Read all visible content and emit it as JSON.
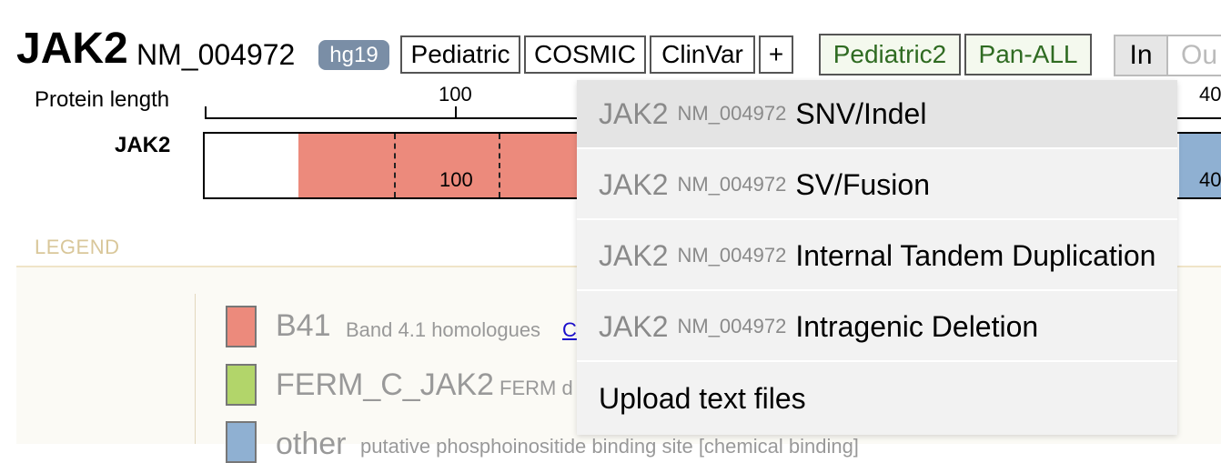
{
  "header": {
    "gene": "JAK2",
    "isoform": "NM_004972",
    "genome_badge": "hg19",
    "dataset_buttons": [
      "Pediatric",
      "COSMIC",
      "ClinVar",
      "+"
    ],
    "group_buttons": [
      "Pediatric2",
      "Pan-ALL"
    ],
    "toggle_in": "In",
    "toggle_out": "Ou"
  },
  "ruler": {
    "label": "Protein length",
    "ticks": [
      "100",
      "40"
    ]
  },
  "track": {
    "label": "JAK2",
    "number_labels": [
      "100",
      "40"
    ]
  },
  "colors": {
    "B41": "#ec8a7c",
    "FERM_C_JAK2": "#b2d56a",
    "other": "#8fb0d2",
    "group_text": "#2f6b22"
  },
  "legend": {
    "title": "LEGEND",
    "items": [
      {
        "name": "B41",
        "description": "Band 4.1 homologues",
        "link": "C",
        "color_key": "B41"
      },
      {
        "name": "FERM_C_JAK2",
        "description": "FERM d",
        "color_key": "FERM_C_JAK2"
      },
      {
        "name": "other",
        "description": "putative phosphoinositide binding site [chemical binding]",
        "color_key": "other"
      }
    ]
  },
  "menu": {
    "items": [
      {
        "gene": "JAK2",
        "isoform": "NM_004972",
        "label": "SNV/Indel"
      },
      {
        "gene": "JAK2",
        "isoform": "NM_004972",
        "label": "SV/Fusion"
      },
      {
        "gene": "JAK2",
        "isoform": "NM_004972",
        "label": "Internal Tandem Duplication"
      },
      {
        "gene": "JAK2",
        "isoform": "NM_004972",
        "label": "Intragenic Deletion"
      }
    ],
    "upload_label": "Upload text files"
  }
}
